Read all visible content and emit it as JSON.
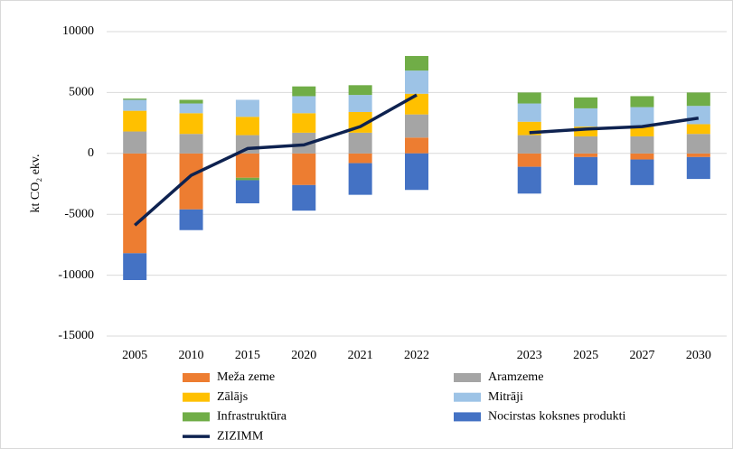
{
  "chart_data": {
    "type": "bar",
    "stacked": true,
    "y_label": "kt CO₂ ekv.",
    "categories": [
      "2005",
      "2010",
      "2015",
      "2020",
      "2021",
      "2022",
      null,
      "2023",
      "2025",
      "2027",
      "2030"
    ],
    "ylim": [
      -15000,
      10000
    ],
    "yticks": [
      -15000,
      -10000,
      -5000,
      0,
      5000,
      10000
    ],
    "grid": true,
    "legend": "bottom",
    "series": [
      {
        "name": "Meža zeme",
        "type": "bar",
        "color": "#ed7d31",
        "values": [
          -8200,
          -4600,
          -2000,
          -2600,
          -800,
          1300,
          null,
          -1100,
          -300,
          -500,
          -300
        ]
      },
      {
        "name": "Aramzeme",
        "type": "bar",
        "color": "#a5a5a5",
        "values": [
          1800,
          1600,
          1500,
          1700,
          1700,
          1900,
          null,
          1500,
          1400,
          1400,
          1600
        ]
      },
      {
        "name": "Zālājs",
        "type": "bar",
        "color": "#ffc000",
        "values": [
          1700,
          1700,
          1500,
          1600,
          1700,
          1700,
          null,
          1100,
          800,
          800,
          800
        ]
      },
      {
        "name": "Mitrāji",
        "type": "bar",
        "color": "#9dc3e6",
        "values": [
          900,
          800,
          1400,
          1400,
          1400,
          1900,
          null,
          1500,
          1500,
          1600,
          1500
        ]
      },
      {
        "name": "Infrastruktūra",
        "type": "bar",
        "color": "#70ad47",
        "values": [
          100,
          300,
          -200,
          800,
          800,
          1200,
          null,
          900,
          900,
          900,
          1100
        ]
      },
      {
        "name": "Nocirstas koksnes produkti",
        "type": "bar",
        "color": "#4472c4",
        "values": [
          -2200,
          -1700,
          -1900,
          -2100,
          -2600,
          -3000,
          null,
          -2200,
          -2300,
          -2100,
          -1800
        ]
      },
      {
        "name": "ZIZIMM",
        "type": "line",
        "color": "#0e2250",
        "values": [
          -5900,
          -1800,
          400,
          700,
          2200,
          4800,
          null,
          1700,
          2000,
          2200,
          2900
        ]
      }
    ]
  }
}
